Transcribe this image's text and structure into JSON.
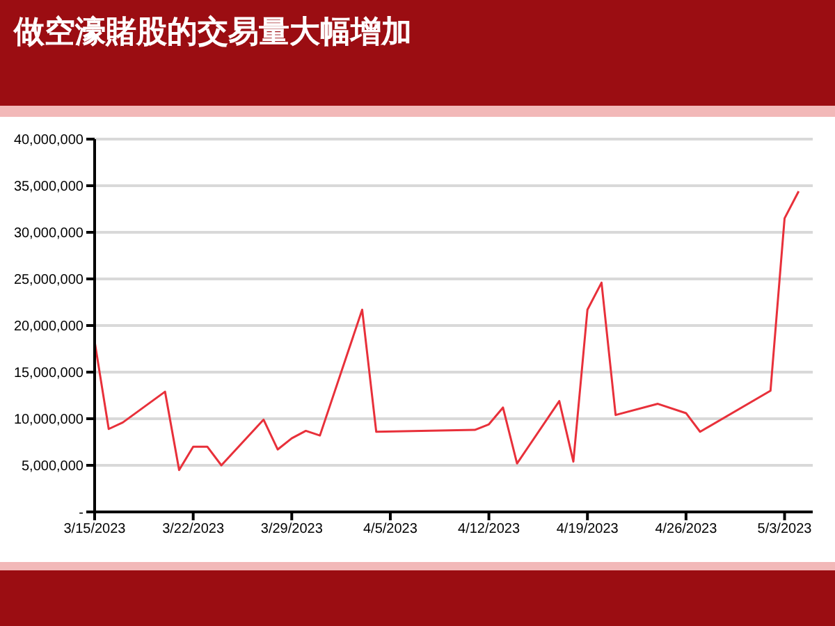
{
  "chart_data": {
    "type": "line",
    "title": "做空濠賭股的交易量大幅增加",
    "x": [
      "2023-03-15",
      "2023-03-16",
      "2023-03-17",
      "2023-03-20",
      "2023-03-21",
      "2023-03-22",
      "2023-03-23",
      "2023-03-24",
      "2023-03-27",
      "2023-03-28",
      "2023-03-29",
      "2023-03-30",
      "2023-03-31",
      "2023-04-03",
      "2023-04-04",
      "2023-04-11",
      "2023-04-12",
      "2023-04-13",
      "2023-04-14",
      "2023-04-17",
      "2023-04-18",
      "2023-04-19",
      "2023-04-20",
      "2023-04-21",
      "2023-04-24",
      "2023-04-26",
      "2023-04-27",
      "2023-05-02",
      "2023-05-03",
      "2023-05-04"
    ],
    "series": [
      {
        "color": "#e8303a",
        "values": [
          18300000,
          8900000,
          9600000,
          12900000,
          4500000,
          7000000,
          7000000,
          5000000,
          9900000,
          6700000,
          7900000,
          8700000,
          8200000,
          21700000,
          8600000,
          8800000,
          9400000,
          11200000,
          5200000,
          11900000,
          5400000,
          21700000,
          24600000,
          10400000,
          11600000,
          10600000,
          8600000,
          13000000,
          31500000,
          34400000
        ]
      }
    ],
    "xlim": [
      "2023-03-15",
      "2023-05-05"
    ],
    "xticks": [
      {
        "value": "2023-03-15",
        "label": "3/15/2023"
      },
      {
        "value": "2023-03-22",
        "label": "3/22/2023"
      },
      {
        "value": "2023-03-29",
        "label": "3/29/2023"
      },
      {
        "value": "2023-04-05",
        "label": "4/5/2023"
      },
      {
        "value": "2023-04-12",
        "label": "4/12/2023"
      },
      {
        "value": "2023-04-19",
        "label": "4/19/2023"
      },
      {
        "value": "2023-04-26",
        "label": "4/26/2023"
      },
      {
        "value": "2023-05-03",
        "label": "5/3/2023"
      }
    ],
    "ylim": [
      0,
      40000000
    ],
    "yticks": [
      {
        "value": 0,
        "label": "-"
      },
      {
        "value": 5000000,
        "label": "5,000,000"
      },
      {
        "value": 10000000,
        "label": "10,000,000"
      },
      {
        "value": 15000000,
        "label": "15,000,000"
      },
      {
        "value": 20000000,
        "label": "20,000,000"
      },
      {
        "value": 25000000,
        "label": "25,000,000"
      },
      {
        "value": 30000000,
        "label": "30,000,000"
      },
      {
        "value": 35000000,
        "label": "35,000,000"
      },
      {
        "value": 40000000,
        "label": "40,000,000"
      }
    ],
    "grid": "y",
    "marker": "none",
    "line_style": "solid",
    "legend": false
  }
}
